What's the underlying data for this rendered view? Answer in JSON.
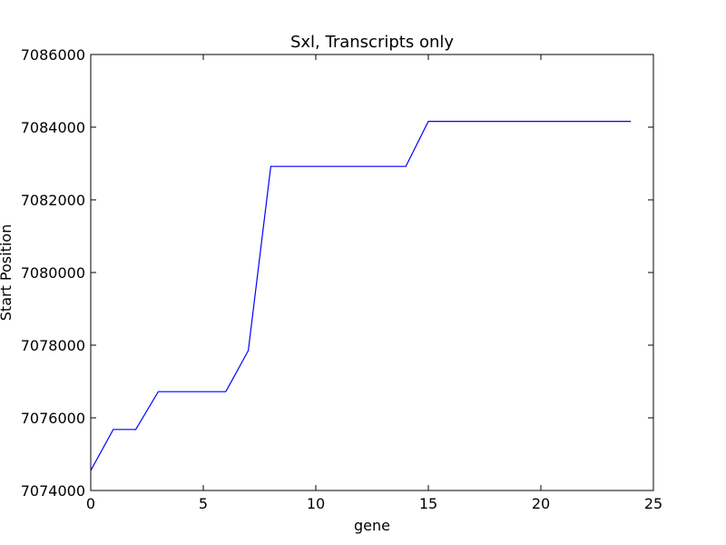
{
  "chart_data": {
    "type": "line",
    "title": "Sxl, Transcripts only",
    "xlabel": "gene",
    "ylabel": "Start Position",
    "xlim": [
      0,
      25
    ],
    "ylim": [
      7074000,
      7086000
    ],
    "xticks": [
      0,
      5,
      10,
      15,
      20,
      25
    ],
    "xtick_labels": [
      "0",
      "5",
      "10",
      "15",
      "20",
      "25"
    ],
    "yticks": [
      7074000,
      7076000,
      7078000,
      7080000,
      7082000,
      7084000,
      7086000
    ],
    "ytick_labels": [
      "7074000",
      "7076000",
      "7078000",
      "7080000",
      "7082000",
      "7084000",
      "7086000"
    ],
    "grid": false,
    "series": [
      {
        "color": "#0000ff",
        "x": [
          0,
          1,
          2,
          3,
          4,
          5,
          6,
          7,
          8,
          9,
          10,
          11,
          12,
          13,
          14,
          15,
          16,
          17,
          18,
          19,
          20,
          21,
          22,
          23,
          24
        ],
        "y": [
          7074550,
          7075680,
          7075680,
          7076720,
          7076720,
          7076720,
          7076720,
          7077850,
          7082920,
          7082920,
          7082920,
          7082920,
          7082920,
          7082920,
          7082920,
          7084160,
          7084160,
          7084160,
          7084160,
          7084160,
          7084160,
          7084160,
          7084160,
          7084160,
          7084160
        ]
      }
    ]
  }
}
